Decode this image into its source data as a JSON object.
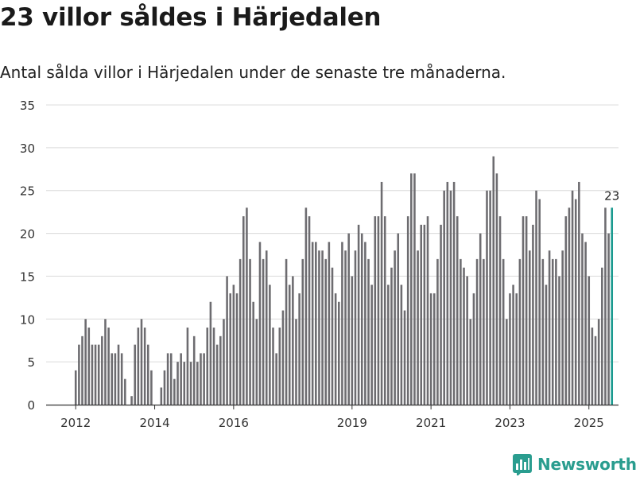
{
  "header": {
    "title": "23 villor såldes i Härjedalen",
    "subtitle": "Antal sålda villor i Härjedalen under de senaste tre månaderna."
  },
  "branding": {
    "name": "Newsworthy",
    "color": "#2a9d8f"
  },
  "colors": {
    "bar": "#6d6c70",
    "highlight": "#1a9a8f",
    "grid": "#dcdcdc",
    "axis": "#333333"
  },
  "chart_data": {
    "type": "bar",
    "title": "23 villor såldes i Härjedalen",
    "subtitle": "Antal sålda villor i Härjedalen under de senaste tre månaderna.",
    "xlabel": "",
    "ylabel": "",
    "ylim": [
      0,
      35
    ],
    "yticks": [
      0,
      5,
      10,
      15,
      20,
      25,
      30,
      35
    ],
    "x_range_months": [
      -9,
      165
    ],
    "x_ticks": [
      {
        "label": "2012",
        "month_index": 0
      },
      {
        "label": "2014",
        "month_index": 24
      },
      {
        "label": "2016",
        "month_index": 48
      },
      {
        "label": "2019",
        "month_index": 84
      },
      {
        "label": "2021",
        "month_index": 108
      },
      {
        "label": "2023",
        "month_index": 132
      },
      {
        "label": "2025",
        "month_index": 156
      }
    ],
    "start_month_index": 0,
    "values": [
      4,
      7,
      8,
      10,
      9,
      7,
      7,
      7,
      8,
      10,
      9,
      6,
      6,
      7,
      6,
      3,
      null,
      1,
      7,
      9,
      10,
      9,
      7,
      4,
      null,
      null,
      2,
      4,
      6,
      6,
      3,
      5,
      6,
      5,
      9,
      5,
      8,
      5,
      6,
      6,
      9,
      12,
      9,
      7,
      8,
      10,
      15,
      13,
      14,
      13,
      17,
      22,
      23,
      17,
      12,
      10,
      19,
      17,
      18,
      14,
      9,
      6,
      9,
      11,
      17,
      14,
      15,
      10,
      13,
      17,
      23,
      22,
      19,
      19,
      18,
      18,
      17,
      19,
      16,
      13,
      12,
      19,
      18,
      20,
      15,
      18,
      21,
      20,
      19,
      17,
      14,
      22,
      22,
      26,
      22,
      14,
      16,
      18,
      20,
      14,
      11,
      22,
      27,
      27,
      18,
      21,
      21,
      22,
      13,
      13,
      17,
      21,
      25,
      26,
      25,
      26,
      22,
      17,
      16,
      15,
      10,
      13,
      17,
      20,
      17,
      25,
      25,
      29,
      27,
      22,
      17,
      10,
      13,
      14,
      13,
      17,
      22,
      22,
      18,
      21,
      25,
      24,
      17,
      14,
      18,
      17,
      17,
      15,
      18,
      22,
      23,
      25,
      24,
      26,
      20,
      19,
      15,
      9,
      8,
      10,
      16,
      23,
      20,
      23
    ],
    "highlight_last": true,
    "annotations": [
      {
        "text": "23",
        "target": "last-bar"
      }
    ]
  }
}
